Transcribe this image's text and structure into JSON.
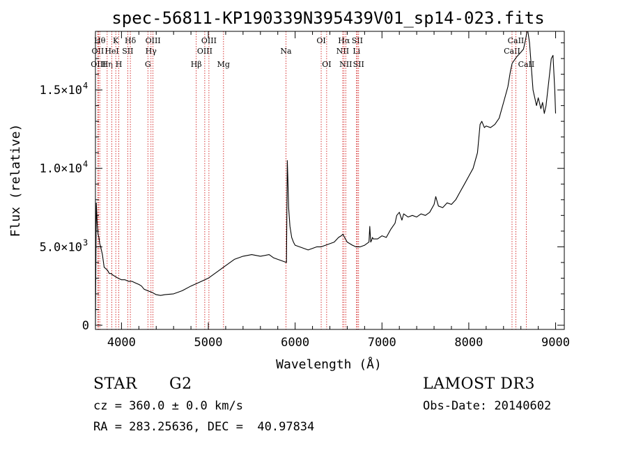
{
  "chart_data": {
    "type": "line",
    "title": "spec-56811-KP190339N395439V01_sp14-023.fits",
    "xlabel": "Wavelength (Å)",
    "ylabel": "Flux (relative)",
    "xlim": [
      3700,
      9100
    ],
    "ylim": [
      0,
      19000
    ],
    "xticks": [
      4000,
      5000,
      6000,
      7000,
      8000,
      9000
    ],
    "xtick_labels": [
      "4000",
      "5000",
      "6000",
      "7000",
      "8000",
      "9000"
    ],
    "yticks": [
      0,
      5000,
      10000,
      15000
    ],
    "ytick_labels": [
      "0",
      "5.0×10",
      "1.0×10",
      "1.5×10"
    ],
    "ytick_exponents": [
      "",
      "3",
      "4",
      "4"
    ],
    "series": [
      {
        "name": "flux",
        "x": [
          3700,
          3710,
          3720,
          3730,
          3740,
          3750,
          3760,
          3780,
          3800,
          3820,
          3840,
          3860,
          3880,
          3900,
          3930,
          3960,
          4000,
          4040,
          4080,
          4120,
          4160,
          4200,
          4230,
          4260,
          4300,
          4350,
          4400,
          4450,
          4500,
          4600,
          4700,
          4800,
          4900,
          5000,
          5100,
          5200,
          5300,
          5400,
          5500,
          5600,
          5700,
          5750,
          5800,
          5850,
          5900,
          5910,
          5915,
          5925,
          5940,
          5960,
          5980,
          6000,
          6050,
          6100,
          6150,
          6200,
          6250,
          6300,
          6350,
          6400,
          6450,
          6500,
          6530,
          6550,
          6560,
          6580,
          6600,
          6630,
          6660,
          6700,
          6750,
          6800,
          6850,
          6860,
          6870,
          6880,
          6890,
          6900,
          6950,
          7000,
          7050,
          7100,
          7150,
          7170,
          7200,
          7230,
          7250,
          7300,
          7350,
          7400,
          7450,
          7500,
          7550,
          7600,
          7620,
          7650,
          7700,
          7750,
          7800,
          7850,
          7900,
          7950,
          8000,
          8050,
          8100,
          8130,
          8150,
          8180,
          8200,
          8250,
          8300,
          8350,
          8400,
          8450,
          8480,
          8500,
          8550,
          8600,
          8630,
          8650,
          8660,
          8670,
          8680,
          8700,
          8720,
          8740,
          8760,
          8780,
          8800,
          8830,
          8850,
          8870,
          8890,
          8920,
          8950,
          8970,
          8990,
          9000
        ],
        "y": [
          0,
          7800,
          6500,
          5800,
          5600,
          5200,
          5000,
          4500,
          3700,
          3600,
          3500,
          3300,
          3300,
          3200,
          3100,
          3000,
          2900,
          2900,
          2800,
          2800,
          2700,
          2600,
          2500,
          2300,
          2200,
          2100,
          1950,
          1900,
          1950,
          2000,
          2200,
          2500,
          2750,
          3000,
          3400,
          3800,
          4200,
          4400,
          4500,
          4400,
          4500,
          4300,
          4200,
          4100,
          4000,
          10500,
          9500,
          7500,
          6300,
          5600,
          5300,
          5100,
          5000,
          4900,
          4800,
          4900,
          5000,
          5000,
          5100,
          5200,
          5300,
          5600,
          5700,
          5800,
          5700,
          5500,
          5300,
          5200,
          5100,
          5000,
          5000,
          5100,
          5300,
          6300,
          5300,
          5400,
          5600,
          5500,
          5500,
          5700,
          5600,
          6100,
          6500,
          7000,
          7200,
          6700,
          7100,
          6900,
          7000,
          6900,
          7100,
          7000,
          7200,
          7700,
          8200,
          7600,
          7500,
          7800,
          7700,
          8000,
          8500,
          9000,
          9500,
          10000,
          11000,
          12800,
          13000,
          12600,
          12700,
          12600,
          12800,
          13200,
          14200,
          15200,
          16200,
          16700,
          17100,
          17400,
          17600,
          18100,
          18400,
          18900,
          18800,
          18000,
          16500,
          15000,
          14500,
          14000,
          14500,
          13800,
          14200,
          13500,
          14000,
          15500,
          17000,
          17200,
          15000,
          13500
        ]
      }
    ],
    "lines": [
      {
        "name": "OII",
        "x": 3727,
        "row": 2,
        "color": "#cc0000"
      },
      {
        "name": "OIII",
        "x": 3734,
        "row": 3,
        "color": "#cc0000"
      },
      {
        "name": "Hθ",
        "x": 3750,
        "row": 1,
        "color": "#cc0000"
      },
      {
        "name": "Hη",
        "x": 3835,
        "row": 3,
        "color": "#cc0000"
      },
      {
        "name": "HeI",
        "x": 3889,
        "row": 2,
        "color": "#cc0000"
      },
      {
        "name": "K",
        "x": 3934,
        "row": 1,
        "color": "#cc0000"
      },
      {
        "name": "H",
        "x": 3969,
        "row": 3,
        "color": "#cc0000"
      },
      {
        "name": "SII",
        "x": 4072,
        "row": 2,
        "color": "#cc0000"
      },
      {
        "name": "Hδ",
        "x": 4102,
        "row": 1,
        "color": "#cc0000"
      },
      {
        "name": "G",
        "x": 4304,
        "row": 3,
        "color": "#cc0000"
      },
      {
        "name": "Hγ",
        "x": 4340,
        "row": 2,
        "color": "#cc0000"
      },
      {
        "name": "OIII",
        "x": 4363,
        "row": 1,
        "color": "#cc0000"
      },
      {
        "name": "Hβ",
        "x": 4861,
        "row": 3,
        "color": "#cc0000"
      },
      {
        "name": "OIII",
        "x": 4959,
        "row": 2,
        "color": "#cc0000"
      },
      {
        "name": "OIII",
        "x": 5007,
        "row": 1,
        "color": "#cc0000"
      },
      {
        "name": "Mg",
        "x": 5175,
        "row": 3,
        "color": "#cc0000"
      },
      {
        "name": "Na",
        "x": 5894,
        "row": 2,
        "color": "#cc0000"
      },
      {
        "name": "OI",
        "x": 6300,
        "row": 1,
        "color": "#cc0000"
      },
      {
        "name": "OI",
        "x": 6363,
        "row": 3,
        "color": "#cc0000"
      },
      {
        "name": "NII",
        "x": 6548,
        "row": 2,
        "color": "#cc0000"
      },
      {
        "name": "Hα",
        "x": 6563,
        "row": 1,
        "color": "#cc0000"
      },
      {
        "name": "NII",
        "x": 6583,
        "row": 3,
        "color": "#cc0000"
      },
      {
        "name": "Li",
        "x": 6707,
        "row": 2,
        "color": "#cc0000"
      },
      {
        "name": "SII",
        "x": 6716,
        "row": 1,
        "color": "#cc0000"
      },
      {
        "name": "SII",
        "x": 6731,
        "row": 3,
        "color": "#cc0000"
      },
      {
        "name": "CaII",
        "x": 8498,
        "row": 2,
        "color": "#cc0000"
      },
      {
        "name": "CaII",
        "x": 8542,
        "row": 1,
        "color": "#cc0000"
      },
      {
        "name": "CaII",
        "x": 8662,
        "row": 3,
        "color": "#cc0000"
      }
    ]
  },
  "info": {
    "object_type": "STAR",
    "subclass": "G2",
    "survey": "LAMOST DR3",
    "velocity": "cz = 360.0 ± 0.0 km/s",
    "obs_date": "Obs-Date: 20140602",
    "coords": "RA = 283.25636, DEC =  40.97834"
  }
}
